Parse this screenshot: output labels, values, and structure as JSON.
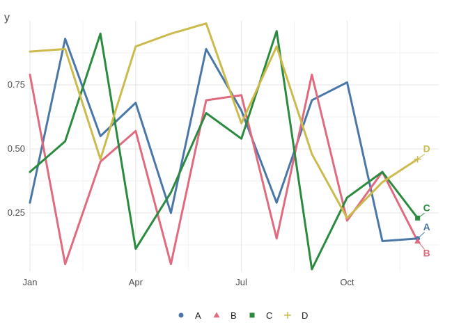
{
  "chart_data": {
    "type": "line",
    "title": "",
    "xlabel": "",
    "ylabel": "y",
    "x": [
      1,
      2,
      3,
      4,
      5,
      6,
      7,
      8,
      9,
      10,
      11,
      12
    ],
    "xlim": [
      1,
      12.6
    ],
    "ylim": [
      0,
      1
    ],
    "x_ticks": [
      {
        "value": 1,
        "label": "Jan"
      },
      {
        "value": 4,
        "label": "Apr"
      },
      {
        "value": 7,
        "label": "Jul"
      },
      {
        "value": 10,
        "label": "Oct"
      }
    ],
    "y_ticks": [
      {
        "value": 0.25,
        "label": "0.25"
      },
      {
        "value": 0.5,
        "label": "0.50"
      },
      {
        "value": 0.75,
        "label": "0.75"
      }
    ],
    "grid": true,
    "legend_position": "bottom",
    "series": [
      {
        "name": "A",
        "color": "#4a77a8",
        "marker": "circle",
        "values": [
          0.29,
          0.93,
          0.55,
          0.68,
          0.25,
          0.89,
          0.65,
          0.29,
          0.69,
          0.76,
          0.14,
          0.15
        ]
      },
      {
        "name": "B",
        "color": "#e06a7f",
        "marker": "triangle",
        "values": [
          0.79,
          0.05,
          0.45,
          0.57,
          0.05,
          0.69,
          0.71,
          0.15,
          0.79,
          0.22,
          0.41,
          0.14
        ]
      },
      {
        "name": "C",
        "color": "#2a8a3e",
        "marker": "square",
        "values": [
          0.41,
          0.53,
          0.95,
          0.11,
          0.33,
          0.64,
          0.54,
          0.96,
          0.03,
          0.31,
          0.41,
          0.23
        ]
      },
      {
        "name": "D",
        "color": "#ccba4c",
        "marker": "plus",
        "values": [
          0.88,
          0.89,
          0.46,
          0.9,
          0.95,
          0.99,
          0.6,
          0.9,
          0.48,
          0.23,
          0.37,
          0.46
        ]
      }
    ]
  }
}
